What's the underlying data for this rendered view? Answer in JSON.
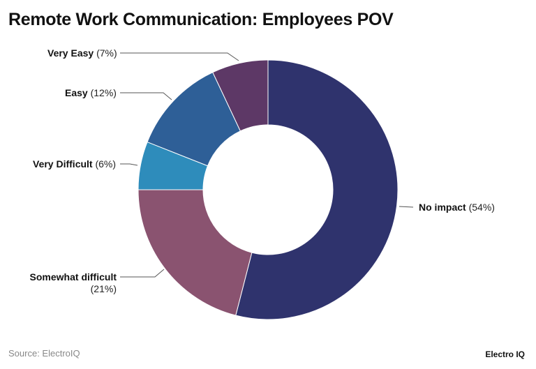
{
  "title": "Remote Work Communication: Employees POV",
  "footer": {
    "source": "Source: ElectroIQ",
    "brand": "Electro IQ"
  },
  "labels": {
    "no_impact": {
      "name": "No impact",
      "pct": "(54%)"
    },
    "somewhat_difficult": {
      "name": "Somewhat difficult",
      "pct": "(21%)"
    },
    "very_difficult": {
      "name": "Very Difficult",
      "pct": "(6%)"
    },
    "easy": {
      "name": "Easy",
      "pct": "(12%)"
    },
    "very_easy": {
      "name": "Very Easy",
      "pct": "(7%)"
    }
  },
  "chart_data": {
    "type": "pie",
    "subtype": "donut",
    "title": "Remote Work Communication: Employees POV",
    "categories": [
      "No impact",
      "Somewhat difficult",
      "Very Difficult",
      "Easy",
      "Very Easy"
    ],
    "values": [
      54,
      21,
      6,
      12,
      7
    ],
    "unit": "%",
    "colors": [
      "#2f336d",
      "#8a5370",
      "#2e8cbb",
      "#2e5f97",
      "#5d3866"
    ],
    "start_angle": "12 o'clock",
    "direction": "clockwise",
    "legend": "none (leader-line labels)",
    "source": "Source: ElectroIQ"
  }
}
